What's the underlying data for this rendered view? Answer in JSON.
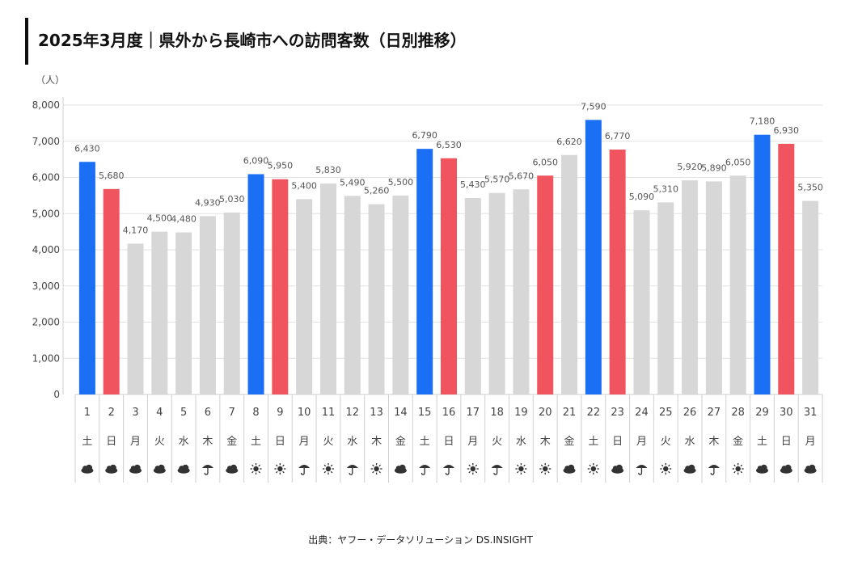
{
  "title": "2025年3月度｜県外から長崎市への訪問客数（日別推移）",
  "source": "出典：ヤフー・データソリューション DS.INSIGHT",
  "colors": {
    "saturday": "#1a6ff5",
    "sunday_holiday": "#f0555f",
    "weekday": "#d7d7d7",
    "gridline": "#e2e2e2",
    "label": "#555555"
  },
  "chart_data": {
    "type": "bar",
    "ylabel": "（人）",
    "ylim": [
      0,
      8000
    ],
    "yticks": [
      "0",
      "1,000",
      "2,000",
      "3,000",
      "4,000",
      "5,000",
      "6,000",
      "7,000",
      "8,000"
    ],
    "grid": true,
    "categories": [
      "1",
      "2",
      "3",
      "4",
      "5",
      "6",
      "7",
      "8",
      "9",
      "10",
      "11",
      "12",
      "13",
      "14",
      "15",
      "16",
      "17",
      "18",
      "19",
      "20",
      "21",
      "22",
      "23",
      "24",
      "25",
      "26",
      "27",
      "28",
      "29",
      "30",
      "31"
    ],
    "weekdays": [
      "土",
      "日",
      "月",
      "火",
      "水",
      "木",
      "金",
      "土",
      "日",
      "月",
      "火",
      "水",
      "木",
      "金",
      "土",
      "日",
      "月",
      "火",
      "水",
      "木",
      "金",
      "土",
      "日",
      "月",
      "火",
      "水",
      "木",
      "金",
      "土",
      "日",
      "月"
    ],
    "weather": [
      "cloud",
      "cloud",
      "cloud",
      "cloud",
      "cloud",
      "rain",
      "cloud",
      "sun",
      "sun",
      "rain",
      "sun",
      "rain",
      "sun",
      "cloud",
      "rain",
      "rain",
      "sun",
      "rain",
      "sun",
      "sun",
      "cloud",
      "sun",
      "cloud",
      "rain",
      "sun",
      "cloud",
      "rain",
      "sun",
      "cloud",
      "cloud",
      "cloud"
    ],
    "values": [
      6430,
      5680,
      4170,
      4500,
      4480,
      4930,
      5030,
      6090,
      5950,
      5400,
      5830,
      5490,
      5260,
      5500,
      6790,
      6530,
      5430,
      5570,
      5670,
      6050,
      6620,
      7590,
      6770,
      5090,
      5310,
      5920,
      5890,
      6050,
      7180,
      6930,
      5350
    ],
    "value_labels": [
      "6,430",
      "5,680",
      "4,170",
      "4,500",
      "4,480",
      "4,930",
      "5,030",
      "6,090",
      "5,950",
      "5,400",
      "5,830",
      "5,490",
      "5,260",
      "5,500",
      "6,790",
      "6,530",
      "5,430",
      "5,570",
      "5,670",
      "6,050",
      "6,620",
      "7,590",
      "6,770",
      "5,090",
      "5,310",
      "5,920",
      "5,890",
      "6,050",
      "7,180",
      "6,930",
      "5,350"
    ],
    "day_type": [
      "sat",
      "sun",
      "wd",
      "wd",
      "wd",
      "wd",
      "wd",
      "sat",
      "sun",
      "wd",
      "wd",
      "wd",
      "wd",
      "wd",
      "sat",
      "sun",
      "wd",
      "wd",
      "wd",
      "hol",
      "wd",
      "sat",
      "sun",
      "wd",
      "wd",
      "wd",
      "wd",
      "wd",
      "sat",
      "sun",
      "wd"
    ]
  }
}
